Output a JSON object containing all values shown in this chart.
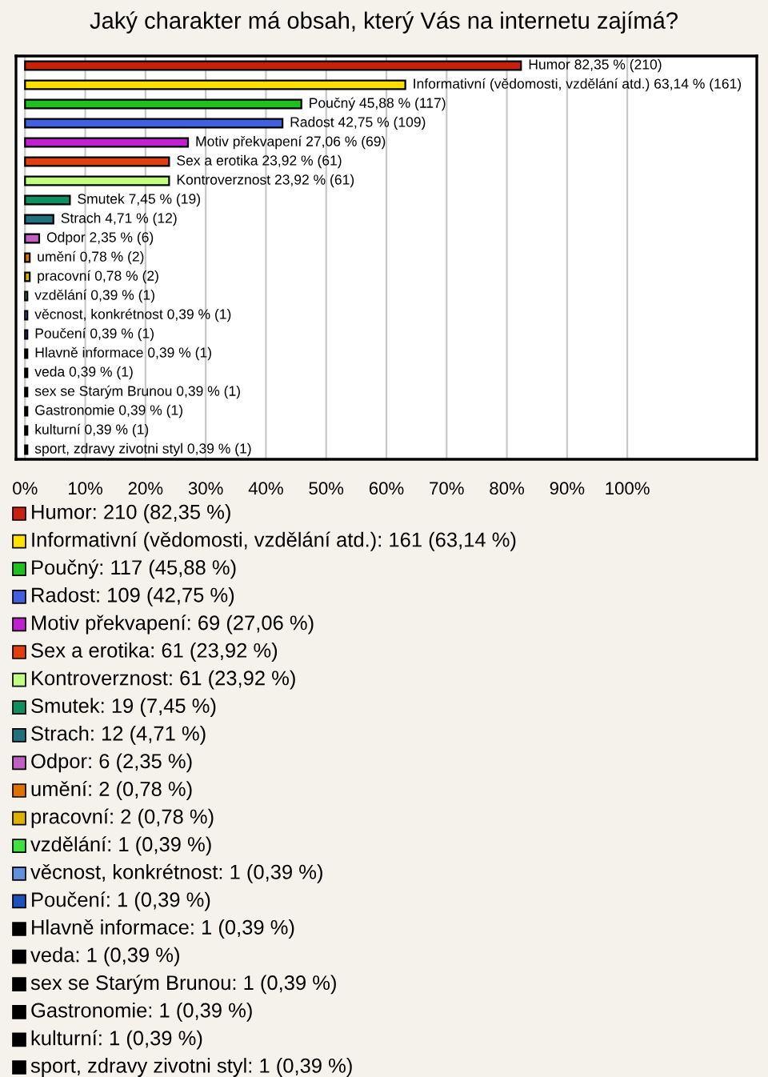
{
  "chart_data": {
    "type": "bar",
    "orientation": "horizontal",
    "title": "Jaký charakter má obsah, který Vás na internetu zajímá?",
    "categories": [
      null,
      null,
      null,
      null,
      null,
      null,
      null,
      null,
      null,
      null,
      null,
      null,
      null,
      null,
      null,
      null,
      null,
      null,
      null,
      null,
      null
    ],
    "values": [
      82.35,
      63.14,
      45.88,
      42.75,
      27.06,
      23.92,
      23.92,
      7.45,
      4.71,
      2.35,
      0.78,
      0.78,
      0.39,
      0.39,
      0.39,
      0.39,
      0.39,
      0.39,
      0.39,
      0.39,
      0.39
    ],
    "colors": [
      "#c8200c",
      "#ffe000",
      "#20c020",
      "#4060e0",
      "#c020d0",
      "#e04010",
      "#c0ff80",
      "#109060",
      "#207080",
      "#c060c0",
      "#e07000",
      "#e0b000",
      "#40e040",
      "#6090e0",
      "#2050c0",
      "#000000",
      "#000000",
      "#000000",
      "#000000",
      "#000000",
      "#000000"
    ],
    "value_labels": [
      "Humor 82,35 % (210)",
      "Informativní (vědomosti, vzdělání atd.) 63,14 % (161)",
      "Poučný 45,88 % (117)",
      "Radost 42,75 % (109)",
      "Motiv překvapení 27,06 % (69)",
      "Sex a erotika 23,92 % (61)",
      "Kontroverznost 23,92 % (61)",
      "Smutek 7,45 % (19)",
      "Strach 4,71 % (12)",
      "Odpor 2,35 % (6)",
      "umění 0,78 % (2)",
      "pracovní 0,78 % (2)",
      "vzdělání 0,39 % (1)",
      "věcnost, konkrétnost 0,39 % (1)",
      "Poučení 0,39 % (1)",
      "Hlavně informace 0,39 % (1)",
      "veda 0,39 % (1)",
      "sex se Starým Brunou 0,39 % (1)",
      "Gastronomie 0,39 % (1)",
      "kulturní 0,39 % (1)",
      "sport, zdravy zivotni styl 0,39 % (1)"
    ],
    "xlim": [
      -1.5,
      121.5
    ],
    "xticks": [
      {
        "value": 0,
        "label": "0%"
      },
      {
        "value": 10,
        "label": "10%"
      },
      {
        "value": 20,
        "label": "20%"
      },
      {
        "value": 30,
        "label": "30%"
      },
      {
        "value": 40,
        "label": "40%"
      },
      {
        "value": 50,
        "label": "50%"
      },
      {
        "value": 60,
        "label": "60%"
      },
      {
        "value": 70,
        "label": "70%"
      },
      {
        "value": 80,
        "label": "80%"
      },
      {
        "value": 90,
        "label": "90%"
      },
      {
        "value": 100,
        "label": "100%"
      }
    ],
    "grid": "x",
    "annotations": [
      "Humor: 210 (82,35 %)",
      "Informativní (vědomosti, vzdělání atd.): 161 (63,14 %)",
      "Poučný: 117 (45,88 %)",
      "Radost: 109 (42,75 %)",
      "Motiv překvapení: 69 (27,06 %)",
      "Sex a erotika: 61 (23,92 %)",
      "Kontroverznost: 61 (23,92 %)",
      "Smutek: 19 (7,45 %)",
      "Strach: 12 (4,71 %)",
      "Odpor: 6 (2,35 %)",
      "umění: 2 (0,78 %)",
      "pracovní: 2 (0,78 %)",
      "vzdělání: 1 (0,39 %)",
      "věcnost, konkrétnost: 1 (0,39 %)",
      "Poučení: 1 (0,39 %)",
      "Hlavně informace: 1 (0,39 %)",
      "veda: 1 (0,39 %)",
      "sex se Starým Brunou: 1 (0,39 %)",
      "Gastronomie: 1 (0,39 %)",
      "kulturní: 1 (0,39 %)",
      "sport, zdravy zivotni styl: 1 (0,39 %)"
    ]
  }
}
